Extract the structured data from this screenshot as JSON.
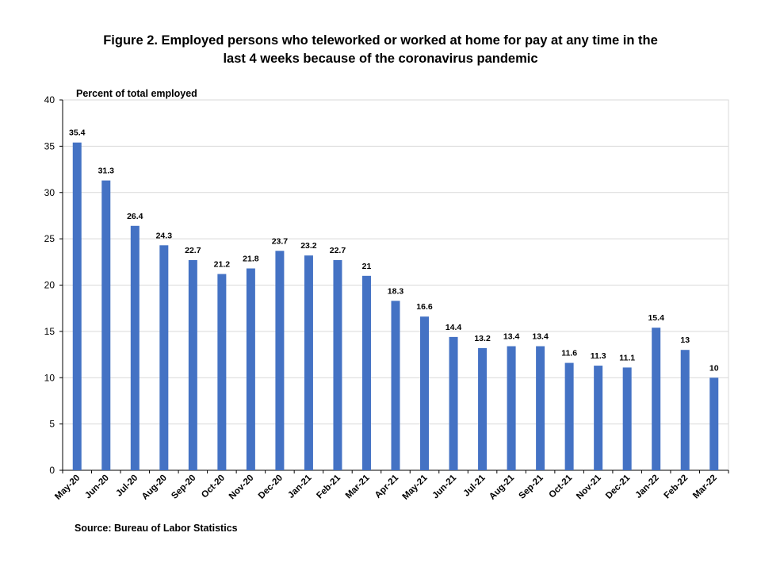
{
  "title": {
    "line1": "Figure 2. Employed persons who teleworked or worked at home for pay at any time in the",
    "line2": "last 4 weeks because of the coronavirus pandemic"
  },
  "source": "Source: Bureau of Labor Statistics",
  "chart_data": {
    "type": "bar",
    "title": "Figure 2. Employed persons who teleworked or worked at home for pay at any time in the last 4 weeks because of the coronavirus pandemic",
    "ylabel": "Percent of total employed",
    "xlabel": "",
    "ylim": [
      0,
      40
    ],
    "yticks": [
      0,
      5,
      10,
      15,
      20,
      25,
      30,
      35,
      40
    ],
    "grid": true,
    "legend": "none",
    "bar_color": "#4472C4",
    "gridline_color": "#D9D9D9",
    "categories": [
      "May-20",
      "Jun-20",
      "Jul-20",
      "Aug-20",
      "Sep-20",
      "Oct-20",
      "Nov-20",
      "Dec-20",
      "Jan-21",
      "Feb-21",
      "Mar-21",
      "Apr-21",
      "May-21",
      "Jun-21",
      "Jul-21",
      "Aug-21",
      "Sep-21",
      "Oct-21",
      "Nov-21",
      "Dec-21",
      "Jan-22",
      "Feb-22",
      "Mar-22"
    ],
    "values": [
      35.4,
      31.3,
      26.4,
      24.3,
      22.7,
      21.2,
      21.8,
      23.7,
      23.2,
      22.7,
      21,
      18.3,
      16.6,
      14.4,
      13.2,
      13.4,
      13.4,
      11.6,
      11.3,
      11.1,
      15.4,
      13,
      10
    ]
  }
}
